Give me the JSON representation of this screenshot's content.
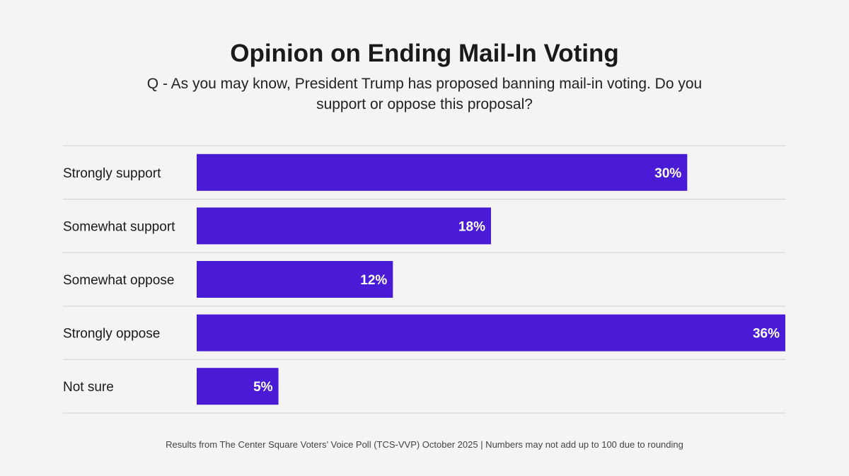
{
  "chart_data": {
    "type": "bar",
    "orientation": "horizontal",
    "title": "Opinion on Ending Mail-In Voting",
    "subtitle": "Q - As you may know, President Trump has proposed banning mail-in voting. Do you support or oppose this proposal?",
    "categories": [
      "Strongly support",
      "Somewhat support",
      "Somewhat oppose",
      "Strongly oppose",
      "Not sure"
    ],
    "values": [
      30,
      18,
      12,
      36,
      5
    ],
    "value_labels": [
      "30%",
      "18%",
      "12%",
      "36%",
      "5%"
    ],
    "xlim": [
      0,
      36
    ],
    "grid": false,
    "bar_color": "#4a1bd6",
    "footnote": "Results from The Center Square Voters’ Voice Poll (TCS-VVP) October 2025 | Numbers may not add up to 100 due to rounding"
  }
}
